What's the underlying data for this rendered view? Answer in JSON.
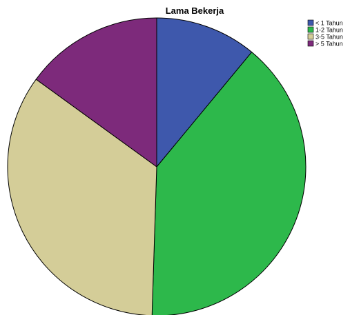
{
  "chart_data": {
    "type": "pie",
    "title": "Lama Bekerja",
    "legend_position": "top-right",
    "categories": [
      "< 1 Tahun",
      "1-2 Tahun",
      "3-5 Tahun",
      "> 5 Tahun"
    ],
    "values": [
      11.0,
      39.5,
      34.5,
      15.0
    ],
    "colors": [
      "#3e58ac",
      "#2db84b",
      "#d4cd98",
      "#7d2a7b"
    ]
  }
}
